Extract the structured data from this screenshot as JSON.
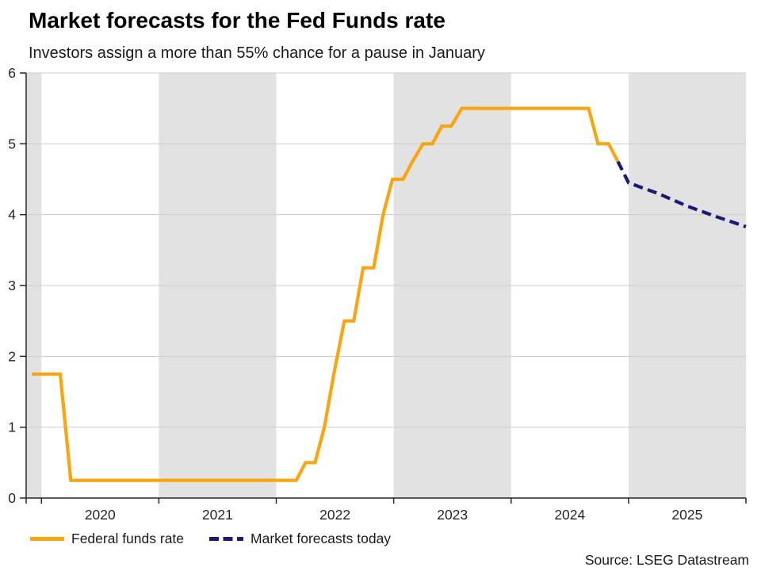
{
  "header": {
    "title": "Market forecasts for the Fed Funds rate",
    "subtitle": "Investors assign a more than 55% chance for a pause in January"
  },
  "legend": [
    {
      "label": "Federal funds rate",
      "color": "#FAA40F",
      "style": "solid"
    },
    {
      "label": "Market forecasts today",
      "color": "#1A1A78",
      "style": "dashed"
    }
  ],
  "footer": {
    "source": "Source: LSEG Datastream"
  },
  "chart_data": {
    "type": "line",
    "title": "Market forecasts for the Fed Funds rate",
    "subtitle": "Investors assign a more than 55% chance for a pause in January",
    "source": "Source: LSEG Datastream",
    "xlabel": "",
    "ylabel": "",
    "x_unit": "decimal_year",
    "x_domain": [
      2019.87,
      2026.0
    ],
    "y_domain": [
      0,
      6
    ],
    "y_ticks": [
      0,
      1,
      2,
      3,
      4,
      5,
      6
    ],
    "x_year_boundaries": [
      2020,
      2021,
      2022,
      2023,
      2024,
      2025,
      2026
    ],
    "x_tick_labels": [
      "2020",
      "2021",
      "2022",
      "2023",
      "2024",
      "2025"
    ],
    "shaded_bands": [
      [
        2019.87,
        2020
      ],
      [
        2021,
        2022
      ],
      [
        2023,
        2024
      ],
      [
        2025,
        2026
      ]
    ],
    "band_color": "#E2E2E2",
    "grid_color": "#CDCDCD",
    "axis_color": "#262626",
    "grid": "horizontal",
    "legend_position": "bottom-left",
    "series": [
      {
        "id": "federal-funds-rate",
        "name": "Federal funds rate",
        "color": "#FAA40F",
        "style": "solid",
        "points": [
          [
            2019.92,
            1.75
          ],
          [
            2020.16,
            1.75
          ],
          [
            2020.25,
            0.25
          ],
          [
            2022.17,
            0.25
          ],
          [
            2022.25,
            0.5
          ],
          [
            2022.33,
            0.5
          ],
          [
            2022.41,
            1.0
          ],
          [
            2022.49,
            1.75
          ],
          [
            2022.58,
            2.5
          ],
          [
            2022.66,
            2.5
          ],
          [
            2022.74,
            3.25
          ],
          [
            2022.83,
            3.25
          ],
          [
            2022.91,
            4.0
          ],
          [
            2022.99,
            4.5
          ],
          [
            2023.08,
            4.5
          ],
          [
            2023.16,
            4.75
          ],
          [
            2023.25,
            5.0
          ],
          [
            2023.33,
            5.0
          ],
          [
            2023.41,
            5.25
          ],
          [
            2023.49,
            5.25
          ],
          [
            2023.58,
            5.5
          ],
          [
            2024.66,
            5.5
          ],
          [
            2024.74,
            5.0
          ],
          [
            2024.83,
            5.0
          ],
          [
            2024.91,
            4.75
          ]
        ]
      },
      {
        "id": "market-forecasts-today",
        "name": "Market forecasts today",
        "color": "#1A1A78",
        "style": "dashed",
        "dash": "12 6.5",
        "points": [
          [
            2024.91,
            4.75
          ],
          [
            2025.0,
            4.45
          ],
          [
            2025.25,
            4.3
          ],
          [
            2025.5,
            4.12
          ],
          [
            2025.75,
            3.97
          ],
          [
            2026.0,
            3.83
          ]
        ]
      }
    ]
  }
}
